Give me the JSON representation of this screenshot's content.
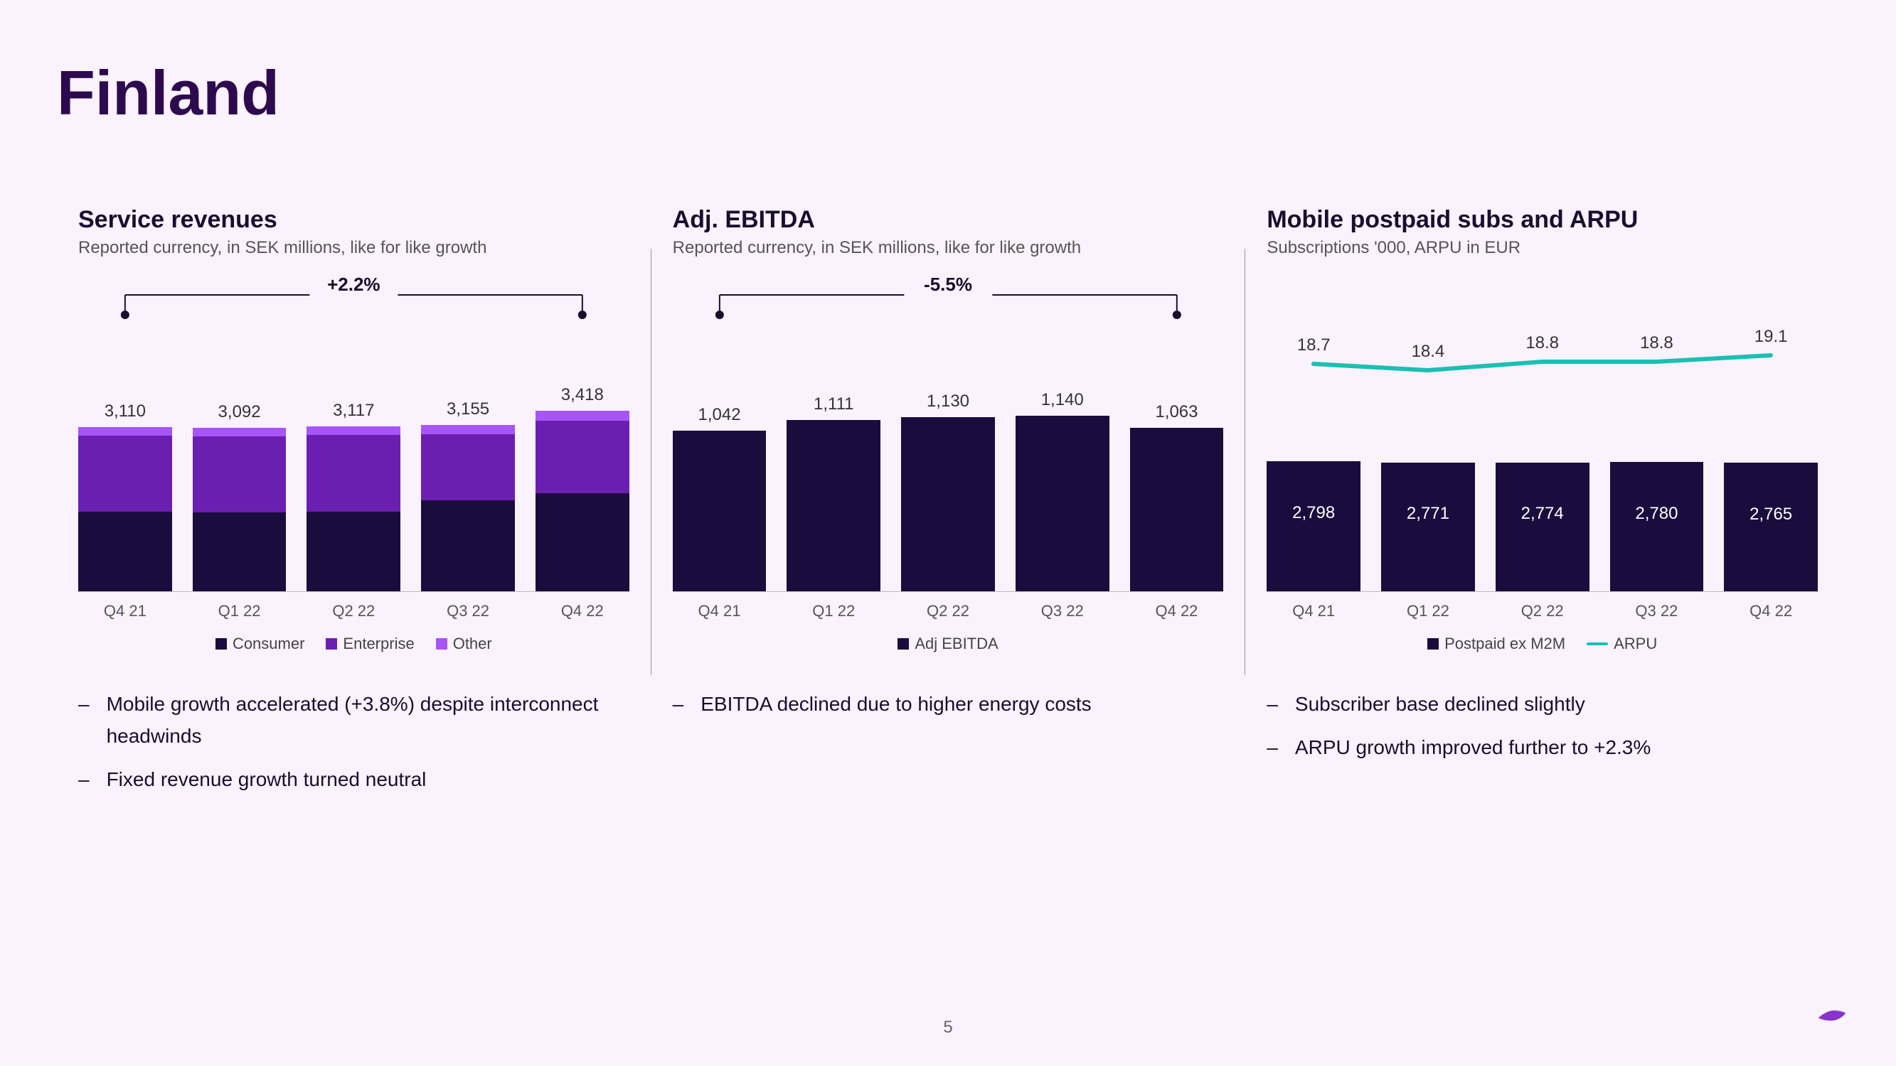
{
  "page": {
    "title": "Finland",
    "number": "5",
    "bg_color": "#faf2fc",
    "title_color": "#2d0a4e"
  },
  "colors": {
    "consumer": "#1a0d3e",
    "enterprise": "#6b1fb0",
    "other": "#a855f7",
    "ebitda_bar": "#1a0d3e",
    "subs_bar": "#1a0d3e",
    "arpu_line": "#1bbfb3",
    "text": "#1a0d2e"
  },
  "charts": {
    "service_revenues": {
      "title": "Service revenues",
      "subtitle": "Reported currency, in SEK millions, like for like growth",
      "growth_label": "+2.2%",
      "categories": [
        "Q4 21",
        "Q1 22",
        "Q2 22",
        "Q3 22",
        "Q4 22"
      ],
      "totals": [
        "3,110",
        "3,092",
        "3,117",
        "3,155",
        "3,418"
      ],
      "total_values": [
        3110,
        3092,
        3117,
        3155,
        3418
      ],
      "max_scale": 3500,
      "segments": {
        "consumer": [
          1510,
          1500,
          1510,
          1720,
          1860
        ],
        "enterprise": [
          1440,
          1432,
          1447,
          1260,
          1370
        ],
        "other": [
          160,
          160,
          160,
          175,
          188
        ]
      },
      "legend": [
        {
          "label": "Consumer",
          "color_key": "consumer"
        },
        {
          "label": "Enterprise",
          "color_key": "enterprise"
        },
        {
          "label": "Other",
          "color_key": "other"
        }
      ],
      "bullets": [
        "Mobile growth accelerated (+3.8%) despite interconnect headwinds",
        "Fixed revenue growth turned neutral"
      ]
    },
    "adj_ebitda": {
      "title": "Adj. EBITDA",
      "subtitle": "Reported currency, in SEK millions, like for like growth",
      "growth_label": "-5.5%",
      "categories": [
        "Q4 21",
        "Q1 22",
        "Q2 22",
        "Q3 22",
        "Q4 22"
      ],
      "values": [
        1042,
        1111,
        1130,
        1140,
        1063
      ],
      "labels": [
        "1,042",
        "1,111",
        "1,130",
        "1,140",
        "1,063"
      ],
      "max_scale": 1200,
      "legend": [
        {
          "label": "Adj EBITDA",
          "color_key": "ebitda_bar"
        }
      ],
      "bullets": [
        "EBITDA declined due to higher energy costs"
      ]
    },
    "mobile_subs": {
      "title": "Mobile postpaid subs and ARPU",
      "subtitle": "Subscriptions '000, ARPU in EUR",
      "categories": [
        "Q4 21",
        "Q1 22",
        "Q2 22",
        "Q3 22",
        "Q4 22"
      ],
      "subs_values": [
        2798,
        2771,
        2774,
        2780,
        2765
      ],
      "subs_labels": [
        "2,798",
        "2,771",
        "2,774",
        "2,780",
        "2,765"
      ],
      "subs_max_scale": 5200,
      "arpu_values": [
        18.7,
        18.4,
        18.8,
        18.8,
        19.1
      ],
      "arpu_labels": [
        "18.7",
        "18.4",
        "18.8",
        "18.8",
        "19.1"
      ],
      "arpu_min": 18.0,
      "arpu_max": 20.0,
      "legend": [
        {
          "label": "Postpaid ex M2M",
          "type": "swatch",
          "color_key": "subs_bar"
        },
        {
          "label": "ARPU",
          "type": "line",
          "color_key": "arpu_line"
        }
      ],
      "bullets": [
        "Subscriber base declined slightly",
        "ARPU growth improved further to +2.3%"
      ]
    }
  }
}
